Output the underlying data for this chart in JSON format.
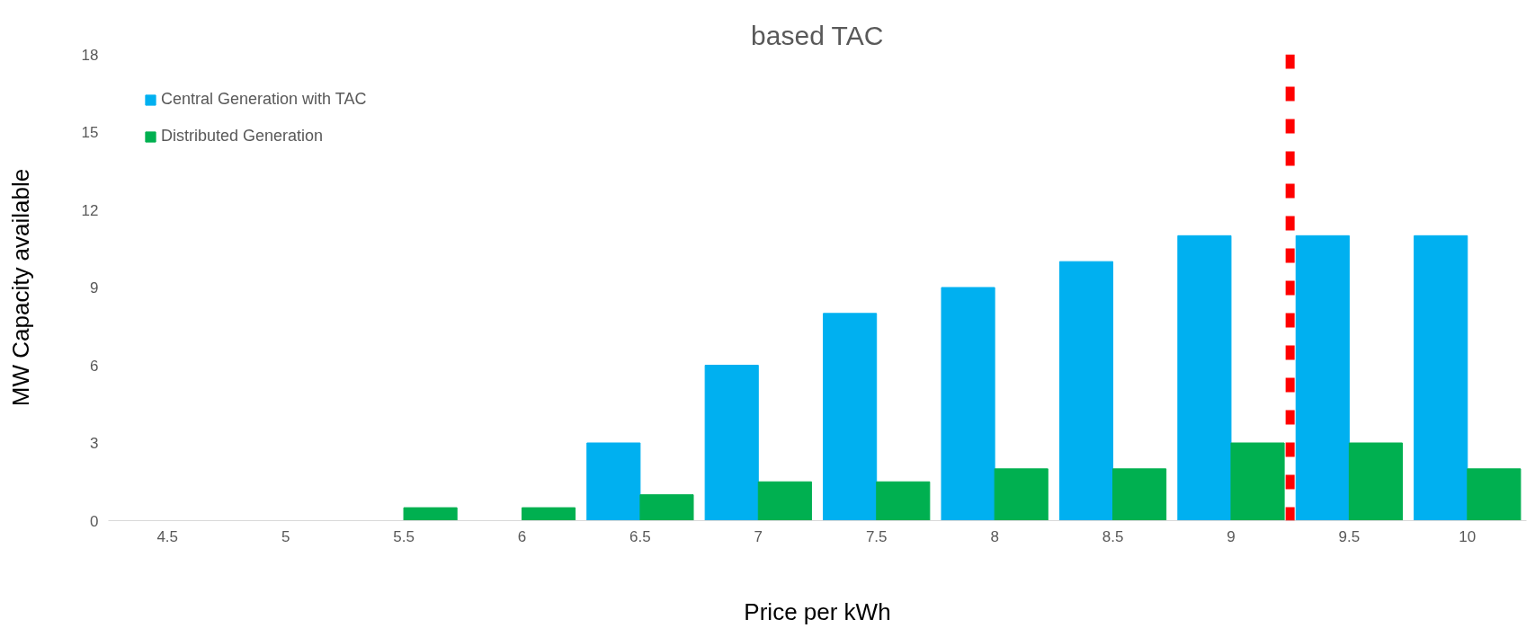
{
  "chart_data": {
    "type": "bar",
    "title": "based TAC",
    "xlabel": "Price per kWh",
    "ylabel": "MW Capacity available",
    "x": [
      4.5,
      5,
      5.5,
      6,
      6.5,
      7,
      7.5,
      8,
      8.5,
      9,
      9.5,
      10
    ],
    "series": [
      {
        "name": "Central Generation with TAC",
        "color": "#00b0f0",
        "values": [
          0,
          0,
          0,
          0,
          3,
          6,
          8,
          9,
          10,
          11,
          11,
          11
        ]
      },
      {
        "name": "Distributed Generation",
        "color": "#00b050",
        "values": [
          0,
          0,
          0.5,
          0.5,
          1,
          1.5,
          1.5,
          2,
          2,
          3,
          3,
          2
        ]
      }
    ],
    "xlim": [
      4.25,
      10.25
    ],
    "xticks": [
      4.5,
      5,
      5.5,
      6,
      6.5,
      7,
      7.5,
      8,
      8.5,
      9,
      9.5,
      10
    ],
    "ylim": [
      0,
      18
    ],
    "yticks": [
      0,
      3,
      6,
      9,
      12,
      15,
      18
    ],
    "ref_lines": [
      {
        "axis": "x",
        "value": 9.25,
        "color": "#ff0000",
        "line_style": "dashed"
      }
    ],
    "grid": false,
    "legend": "top left"
  }
}
